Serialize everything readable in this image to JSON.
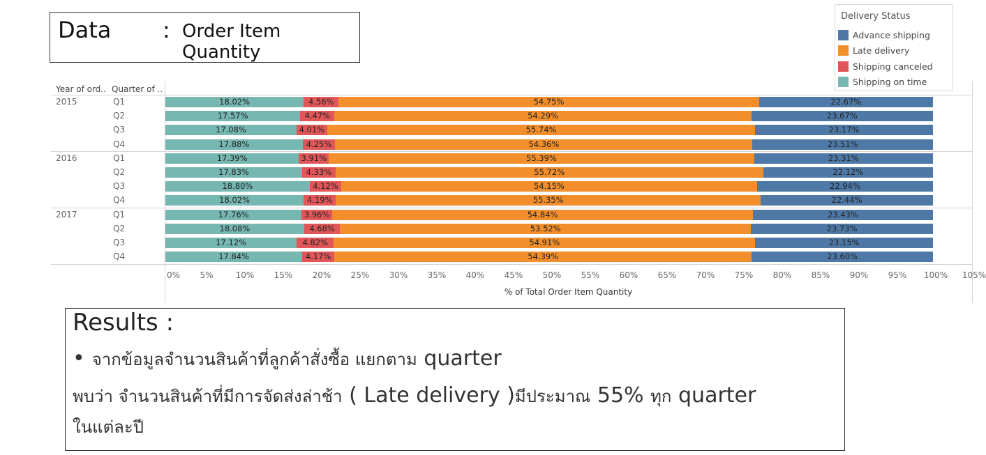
{
  "header": {
    "data_label": "Data",
    "colon": ":",
    "data_value": "Order Item Quantity"
  },
  "legend": {
    "title": "Delivery Status",
    "items": [
      {
        "label": "Advance shipping",
        "color": "#4e79a7"
      },
      {
        "label": "Late delivery",
        "color": "#f28e2b"
      },
      {
        "label": "Shipping canceled",
        "color": "#e15759"
      },
      {
        "label": "Shipping on time",
        "color": "#76b7b2"
      }
    ]
  },
  "table_headers": {
    "year": "Year of ord..",
    "quarter": "Quarter of .."
  },
  "chart_data": {
    "type": "bar",
    "orientation": "horizontal",
    "stacked": true,
    "xlabel": "% of Total Order Item Quantity",
    "xlim": [
      0,
      105
    ],
    "xticks": [
      "0%",
      "5%",
      "10%",
      "15%",
      "20%",
      "25%",
      "30%",
      "35%",
      "40%",
      "45%",
      "50%",
      "55%",
      "60%",
      "65%",
      "70%",
      "75%",
      "80%",
      "85%",
      "90%",
      "95%",
      "100%",
      "105%"
    ],
    "legend_position": "top-right",
    "rows": [
      {
        "year": "2015",
        "quarter": "Q1",
        "values": [
          18.02,
          4.56,
          54.75,
          22.67
        ],
        "labels": [
          "18.02%",
          "4.56%",
          "54.75%",
          "22.67%"
        ]
      },
      {
        "year": "",
        "quarter": "Q2",
        "values": [
          17.57,
          4.47,
          54.29,
          23.67
        ],
        "labels": [
          "17.57%",
          "4.47%",
          "54.29%",
          "23.67%"
        ]
      },
      {
        "year": "",
        "quarter": "Q3",
        "values": [
          17.08,
          4.01,
          55.74,
          23.17
        ],
        "labels": [
          "17.08%",
          "4.01%",
          "55.74%",
          "23.17%"
        ]
      },
      {
        "year": "",
        "quarter": "Q4",
        "values": [
          17.88,
          4.25,
          54.36,
          23.51
        ],
        "labels": [
          "17.88%",
          "4.25%",
          "54.36%",
          "23.51%"
        ]
      },
      {
        "year": "2016",
        "quarter": "Q1",
        "values": [
          17.39,
          3.91,
          55.39,
          23.31
        ],
        "labels": [
          "17.39%",
          "3.91%",
          "55.39%",
          "23.31%"
        ]
      },
      {
        "year": "",
        "quarter": "Q2",
        "values": [
          17.83,
          4.33,
          55.72,
          22.12
        ],
        "labels": [
          "17.83%",
          "4.33%",
          "55.72%",
          "22.12%"
        ]
      },
      {
        "year": "",
        "quarter": "Q3",
        "values": [
          18.8,
          4.12,
          54.15,
          22.94
        ],
        "labels": [
          "18.80%",
          "4.12%",
          "54.15%",
          "22.94%"
        ]
      },
      {
        "year": "",
        "quarter": "Q4",
        "values": [
          18.02,
          4.19,
          55.35,
          22.44
        ],
        "labels": [
          "18.02%",
          "4.19%",
          "55.35%",
          "22.44%"
        ]
      },
      {
        "year": "2017",
        "quarter": "Q1",
        "values": [
          17.76,
          3.96,
          54.84,
          23.43
        ],
        "labels": [
          "17.76%",
          "3.96%",
          "54.84%",
          "23.43%"
        ]
      },
      {
        "year": "",
        "quarter": "Q2",
        "values": [
          18.08,
          4.68,
          53.52,
          23.73
        ],
        "labels": [
          "18.08%",
          "4.68%",
          "53.52%",
          "23.73%"
        ]
      },
      {
        "year": "",
        "quarter": "Q3",
        "values": [
          17.12,
          4.82,
          54.91,
          23.15
        ],
        "labels": [
          "17.12%",
          "4.82%",
          "54.91%",
          "23.15%"
        ]
      },
      {
        "year": "",
        "quarter": "Q4",
        "values": [
          17.84,
          4.17,
          54.39,
          23.6
        ],
        "labels": [
          "17.84%",
          "4.17%",
          "54.39%",
          "23.60%"
        ]
      }
    ],
    "segment_order": [
      "Shipping on time",
      "Shipping canceled",
      "Late delivery",
      "Advance shipping"
    ],
    "segment_colors": [
      "#76b7b2",
      "#e15759",
      "#f28e2b",
      "#4e79a7"
    ]
  },
  "results": {
    "title": "Results :",
    "bullet": "•",
    "line1_th": "จากข้อมูลจำนวนสินค้าที่ลูกค้าสั่งซื้อ แยกตาม",
    "line1_en": "quarter",
    "line2_th_a": "พบว่า จำนวนสินค้าที่มีการจัดส่งล่าช้า",
    "line2_en_a": "( Late delivery )",
    "line2_th_b": "มีประมาณ",
    "line2_en_b": "55%",
    "line2_th_c": "ทุก",
    "line2_en_c": "quarter",
    "line3_th": "ในแต่ละปี"
  }
}
